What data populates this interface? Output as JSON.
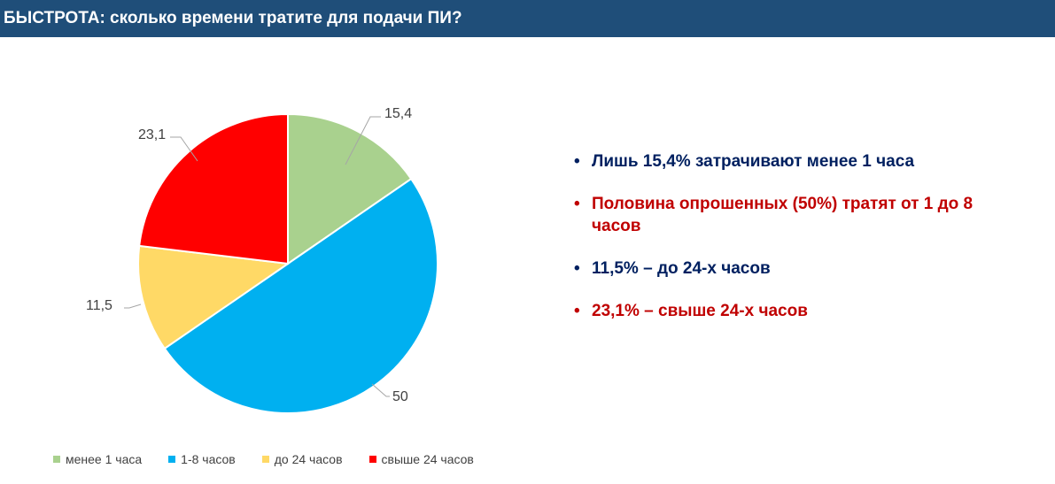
{
  "header": {
    "title": "БЫСТРОТА: сколько времени тратите для подачи ПИ?",
    "bg_color": "#1f4e79"
  },
  "chart_data": {
    "type": "pie",
    "title": "",
    "start_angle_deg": 0,
    "direction": "clockwise",
    "slices": [
      {
        "label": "менее 1 часа",
        "value": 15.4,
        "value_text": "15,4",
        "color": "#a9d18e"
      },
      {
        "label": "1-8 часов",
        "value": 50,
        "value_text": "50",
        "color": "#00b0f0"
      },
      {
        "label": "до 24 часов",
        "value": 11.5,
        "value_text": "11,5",
        "color": "#ffd966"
      },
      {
        "label": "свыше 24 часов",
        "value": 23.1,
        "value_text": "23,1",
        "color": "#ff0000"
      }
    ],
    "legend_position": "bottom"
  },
  "bullets": [
    {
      "text": "Лишь 15,4% затрачивают менее 1 часа",
      "color": "#002060"
    },
    {
      "text": "Половина опрошенных (50%) тратят от 1 до 8 часов",
      "color": "#c00000"
    },
    {
      "text": "11,5% – до 24-х часов",
      "color": "#002060"
    },
    {
      "text": "23,1% – свыше 24-х часов",
      "color": "#c00000"
    }
  ],
  "bullet_symbol": "•"
}
